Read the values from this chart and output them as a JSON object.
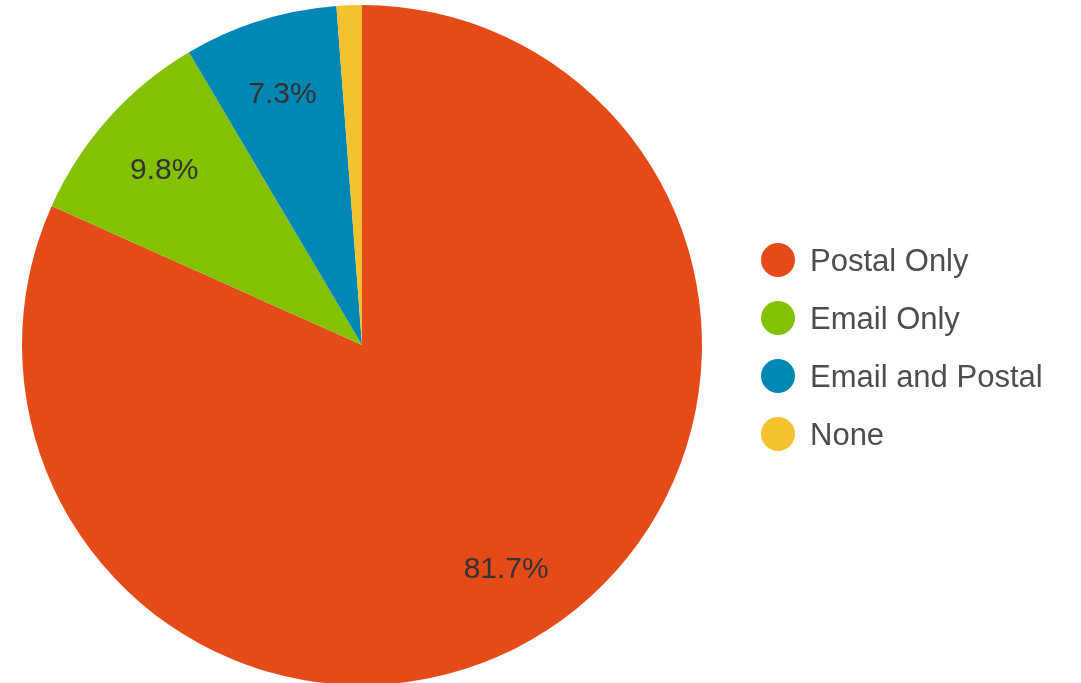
{
  "chart_data": {
    "type": "pie",
    "categories": [
      "Postal Only",
      "Email Only",
      "Email and Postal",
      "None"
    ],
    "values": [
      81.7,
      9.8,
      7.3,
      1.2
    ],
    "colors": [
      "#e54b19",
      "#84c100",
      "#0087b4",
      "#f4c22f"
    ],
    "value_labels": [
      "81.7%",
      "9.8%",
      "7.3%",
      null
    ],
    "legend": "right"
  }
}
